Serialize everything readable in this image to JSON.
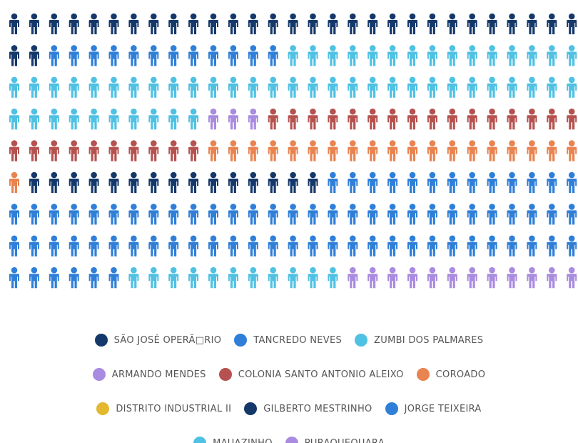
{
  "chart_data": {
    "type": "pictogram",
    "series": [
      {
        "name": "SÃO JOSÉ OPERÃ□RIO",
        "color": "#15386a",
        "values": [
          31
        ]
      },
      {
        "name": "TANCREDO NEVES",
        "color": "#2f7fd8",
        "values": [
          12
        ]
      },
      {
        "name": "ZUMBI DOS PALMARES",
        "color": "#4fc1e3",
        "values": [
          54
        ]
      },
      {
        "name": "ARMANDO MENDES",
        "color": "#a98be0",
        "values": [
          3
        ]
      },
      {
        "name": "COLONIA SANTO ANTONIO ALEIXO",
        "color": "#b5524f",
        "values": [
          26
        ]
      },
      {
        "name": "COROADO",
        "color": "#e9834f",
        "values": [
          20
        ]
      },
      {
        "name": "DISTRITO INDUSTRIAL II",
        "color": "#e3b82e",
        "values": [
          0
        ]
      },
      {
        "name": "GILBERTO MESTRINHO",
        "color": "#15386a",
        "values": [
          15
        ]
      },
      {
        "name": "JORGE TEIXEIRA",
        "color": "#2f7fd8",
        "values": [
          77
        ]
      },
      {
        "name": "MAUAZINHO",
        "color": "#4fc1e3",
        "values": [
          11
        ]
      },
      {
        "name": "PURAQUEQUARA",
        "color": "#a98be0",
        "values": [
          12
        ]
      }
    ]
  }
}
